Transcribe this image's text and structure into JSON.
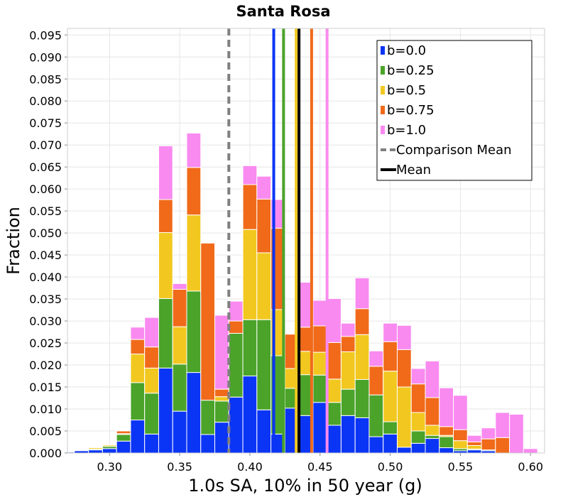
{
  "chart_data": {
    "type": "bar",
    "stacked": true,
    "title": "Santa Rosa",
    "xlabel": "1.0s SA, 10% in 50 year (g)",
    "ylabel": "Fraction",
    "xlim": [
      0.27,
      0.61
    ],
    "ylim": [
      0.0,
      0.0965
    ],
    "grid": true,
    "legend_position": "top-right",
    "xticks": [
      "0.30",
      "0.35",
      "0.40",
      "0.45",
      "0.50",
      "0.55",
      "0.60"
    ],
    "yticks": [
      "0.000",
      "0.005",
      "0.010",
      "0.015",
      "0.020",
      "0.025",
      "0.030",
      "0.035",
      "0.040",
      "0.045",
      "0.050",
      "0.055",
      "0.060",
      "0.065",
      "0.070",
      "0.075",
      "0.080",
      "0.085",
      "0.090",
      "0.095"
    ],
    "bin_width": 0.01,
    "bin_centers": [
      0.27,
      0.28,
      0.29,
      0.3,
      0.31,
      0.32,
      0.33,
      0.34,
      0.35,
      0.36,
      0.37,
      0.38,
      0.39,
      0.4,
      0.41,
      0.42,
      0.43,
      0.44,
      0.45,
      0.46,
      0.47,
      0.48,
      0.49,
      0.5,
      0.51,
      0.52,
      0.53,
      0.54,
      0.55,
      0.56,
      0.57,
      0.58,
      0.59,
      0.6
    ],
    "series": [
      {
        "name": "b=0.0",
        "color": "#0b35f5",
        "values": [
          0.0002,
          0.0005,
          0.0007,
          0.001,
          0.0027,
          0.0075,
          0.0043,
          0.0193,
          0.0095,
          0.0183,
          0.0042,
          0.007,
          0.0127,
          0.0175,
          0.0098,
          0.0043,
          0.0102,
          0.0085,
          0.0115,
          0.0063,
          0.0085,
          0.008,
          0.0037,
          0.0043,
          0.0013,
          0.0022,
          0.0033,
          0.0012,
          0.0005,
          0.0007,
          0.0005,
          0.0,
          0.0,
          0.0
        ]
      },
      {
        "name": "b=0.25",
        "color": "#4ba32a",
        "values": [
          0.0,
          0.0,
          0.0002,
          0.0005,
          0.0015,
          0.0085,
          0.0093,
          0.0158,
          0.0107,
          0.0185,
          0.0078,
          0.0048,
          0.0145,
          0.0128,
          0.0205,
          0.0178,
          0.0045,
          0.0093,
          0.0062,
          0.0052,
          0.006,
          0.0087,
          0.0095,
          0.0028,
          0.0,
          0.0028,
          0.0007,
          0.0025,
          0.0005,
          0.0002,
          0.0002,
          0.0,
          0.0,
          0.0
        ]
      },
      {
        "name": "b=0.5",
        "color": "#f2c820",
        "values": [
          0.0,
          0.0,
          0.0003,
          0.0003,
          0.0002,
          0.0065,
          0.0057,
          0.015,
          0.0085,
          0.0173,
          0.0,
          0.001,
          0.0,
          0.0205,
          0.0152,
          0.0105,
          0.0045,
          0.0053,
          0.0052,
          0.0053,
          0.0085,
          0.0102,
          0.0,
          0.0115,
          0.0137,
          0.0042,
          0.0023,
          0.0003,
          0.0018,
          0.0008,
          0.0,
          0.0,
          0.0,
          0.0
        ]
      },
      {
        "name": "b=0.75",
        "color": "#f06a1a",
        "values": [
          0.0,
          0.0,
          0.0,
          0.0,
          0.0006,
          0.0033,
          0.0048,
          0.0075,
          0.0085,
          0.0108,
          0.0357,
          0.0017,
          0.0028,
          0.0102,
          0.0122,
          0.0185,
          0.0078,
          0.0055,
          0.006,
          0.0083,
          0.0035,
          0.0059,
          0.0065,
          0.0067,
          0.0085,
          0.0065,
          0.0063,
          0.002,
          0.0025,
          0.0008,
          0.0025,
          0.0035,
          0.0,
          0.0
        ]
      },
      {
        "name": "b=1.0",
        "color": "#f98af0",
        "values": [
          0.0,
          0.0,
          0.0,
          0.0,
          0.0,
          0.0028,
          0.0067,
          0.0122,
          0.0013,
          0.0078,
          0.0,
          0.0168,
          0.0045,
          0.0043,
          0.0052,
          0.0065,
          0.0,
          0.0102,
          0.0058,
          0.01,
          0.003,
          0.007,
          0.0035,
          0.0042,
          0.0055,
          0.0035,
          0.0083,
          0.0088,
          0.0078,
          0.0015,
          0.0025,
          0.0057,
          0.0088,
          0.001
        ]
      }
    ],
    "reference_lines": [
      {
        "name": "Comparison Mean",
        "style": "dashed",
        "color": "#808080",
        "x": 0.385
      },
      {
        "name": "Mean",
        "style": "solid",
        "color": "#000000",
        "x": 0.435
      }
    ],
    "series_means": [
      {
        "series": "b=0.0",
        "x": 0.417
      },
      {
        "series": "b=0.25",
        "x": 0.424
      },
      {
        "series": "b=0.5",
        "x": 0.433
      },
      {
        "series": "b=0.75",
        "x": 0.444
      },
      {
        "series": "b=1.0",
        "x": 0.455
      }
    ],
    "legend_labels": [
      "b=0.0",
      "b=0.25",
      "b=0.5",
      "b=0.75",
      "b=1.0",
      "Comparison Mean",
      "Mean"
    ]
  }
}
